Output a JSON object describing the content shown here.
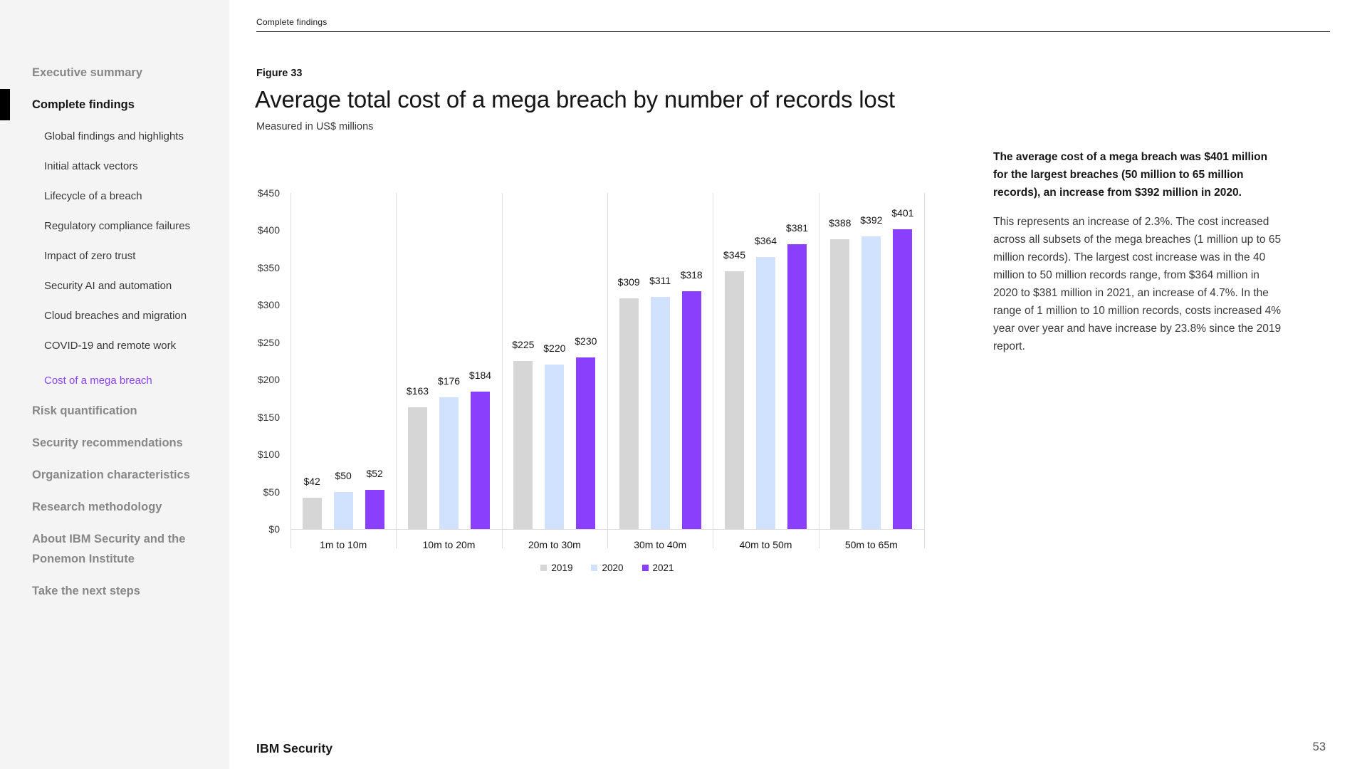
{
  "sidebar": {
    "items": [
      {
        "label": "Executive summary",
        "level": "top",
        "state": ""
      },
      {
        "label": "Complete findings",
        "level": "top",
        "state": "active"
      },
      {
        "label": "Global findings and highlights",
        "level": "sub",
        "state": ""
      },
      {
        "label": "Initial attack vectors",
        "level": "sub",
        "state": ""
      },
      {
        "label": "Lifecycle of a breach",
        "level": "sub",
        "state": ""
      },
      {
        "label": "Regulatory compliance failures",
        "level": "sub",
        "state": ""
      },
      {
        "label": "Impact of zero trust",
        "level": "sub",
        "state": ""
      },
      {
        "label": "Security AI and automation",
        "level": "sub",
        "state": ""
      },
      {
        "label": "Cloud breaches and migration",
        "level": "sub",
        "state": ""
      },
      {
        "label": "COVID-19 and remote work",
        "level": "sub",
        "state": "gap-after"
      },
      {
        "label": "Cost of a mega breach",
        "level": "sub",
        "state": "current"
      },
      {
        "label": "Risk quantification",
        "level": "top",
        "state": ""
      },
      {
        "label": "Security recommendations",
        "level": "top",
        "state": ""
      },
      {
        "label": "Organization characteristics",
        "level": "top",
        "state": ""
      },
      {
        "label": "Research methodology",
        "level": "top",
        "state": ""
      },
      {
        "label": "About IBM Security and the Ponemon Institute",
        "level": "top",
        "state": ""
      },
      {
        "label": "Take the next steps",
        "level": "top",
        "state": ""
      }
    ]
  },
  "header": {
    "eyebrow": "Complete findings",
    "figure_label": "Figure 33",
    "title": "Average total cost of a mega breach by number of records lost",
    "subtitle": "Measured in US$ millions"
  },
  "chart_data": {
    "type": "bar",
    "title": "Average total cost of a mega breach by number of records lost",
    "subtitle": "Measured in US$ millions",
    "figure_label": "Figure 33",
    "categories": [
      "1m to 10m",
      "10m to 20m",
      "20m to 30m",
      "30m to 40m",
      "40m to 50m",
      "50m to 65m"
    ],
    "series": [
      {
        "name": "2019",
        "color": "#d6d6d6",
        "values": [
          42,
          163,
          225,
          309,
          345,
          388
        ]
      },
      {
        "name": "2020",
        "color": "#d0e2ff",
        "values": [
          50,
          176,
          220,
          311,
          364,
          392
        ]
      },
      {
        "name": "2021",
        "color": "#8a3ffc",
        "values": [
          52,
          184,
          230,
          318,
          381,
          401
        ]
      }
    ],
    "value_prefix": "$",
    "unit": "US$ millions",
    "ylim": [
      0,
      450
    ],
    "ytick_step": 50,
    "grid": "vertical-separators-only",
    "legend_position": "bottom"
  },
  "sidenote": {
    "heading": "The average cost of a mega breach was $401 million for the largest breaches (50 million to 65 million records), an increase from $392 million in 2020.",
    "body": "This represents an increase of 2.3%. The cost increased across all subsets of the mega breaches (1 million up to 65 million records). The largest cost increase was in the 40 million to 50 million records range, from $364 million in 2020 to $381 million in 2021, an increase of 4.7%. In the range of 1 million to 10 million records, costs increased 4% year over year and have increase by 23.8% since the 2019 report."
  },
  "footer": {
    "brand_regular": "IBM",
    "brand_bold": "Security",
    "page_number": "53"
  },
  "colors": {
    "sidebar_bg": "#f4f4f4",
    "accent_purple": "#8a3ffc",
    "text_dark": "#161616",
    "text_gray": "#878787",
    "grid_line": "#dcdcdc"
  }
}
